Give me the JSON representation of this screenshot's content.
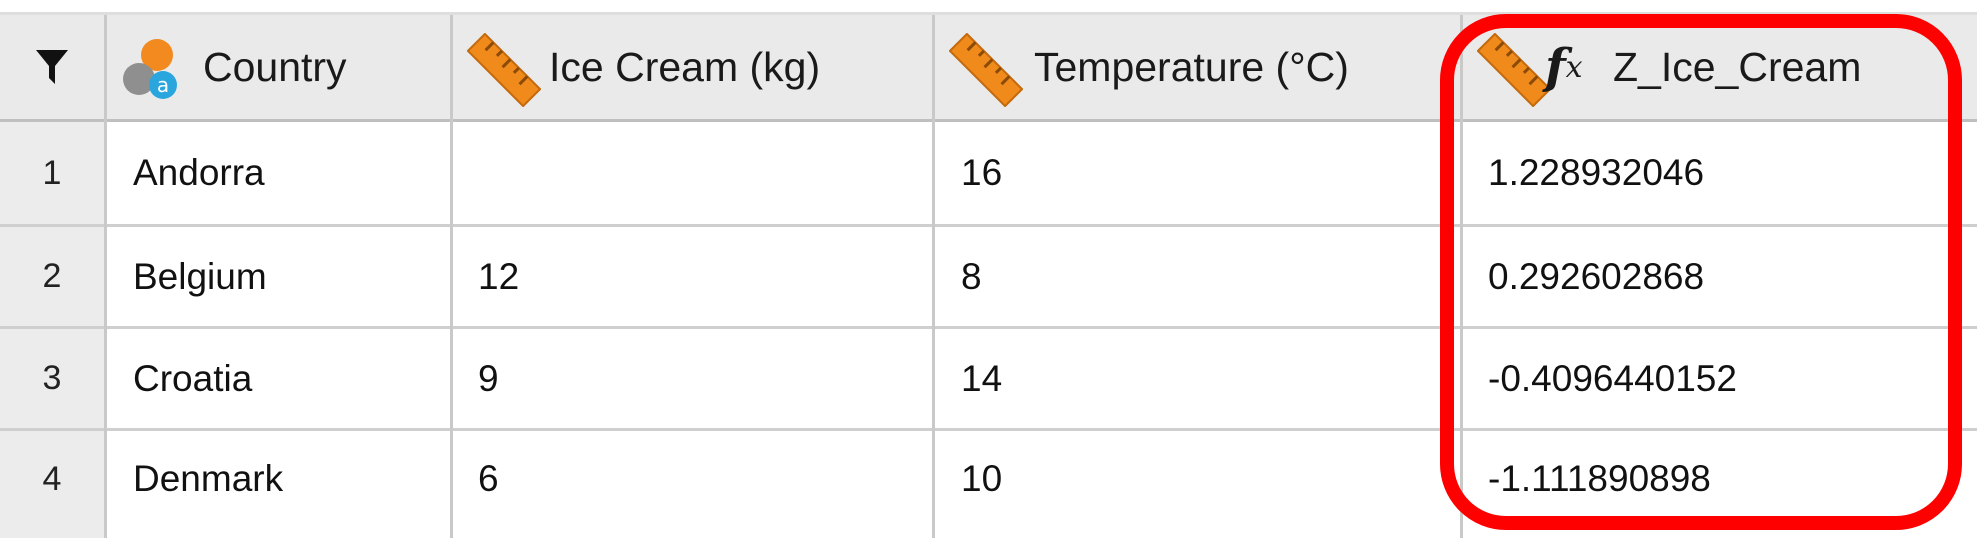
{
  "columns": [
    {
      "id": "filter",
      "label": ""
    },
    {
      "id": "country",
      "label": "Country",
      "icon": "nominal-attribute-icon"
    },
    {
      "id": "ice_cream",
      "label": "Ice Cream (kg)",
      "icon": "ruler-icon"
    },
    {
      "id": "temperature",
      "label": "Temperature (°C)",
      "icon": "ruler-icon"
    },
    {
      "id": "z_ice_cream",
      "label": "Z_Ice_Cream",
      "icon": "ruler-icon",
      "computed_icon": "fx-icon",
      "fx_label": "f",
      "fx_sub": "x"
    }
  ],
  "rows": [
    {
      "num": "1",
      "country": "Andorra",
      "ice_cream": "",
      "temperature": "16",
      "z_ice_cream": "1.228932046"
    },
    {
      "num": "2",
      "country": "Belgium",
      "ice_cream": "12",
      "temperature": "8",
      "z_ice_cream": "0.292602868"
    },
    {
      "num": "3",
      "country": "Croatia",
      "ice_cream": "9",
      "temperature": "14",
      "z_ice_cream": "-0.4096440152"
    },
    {
      "num": "4",
      "country": "Denmark",
      "ice_cream": "6",
      "temperature": "10",
      "z_ice_cream": "-1.111890898"
    }
  ],
  "colors": {
    "header_bg": "#eaeaea",
    "grid_line": "#c9c9c9",
    "ruler_fill": "#f08a1a",
    "highlight": "#ff0000"
  }
}
